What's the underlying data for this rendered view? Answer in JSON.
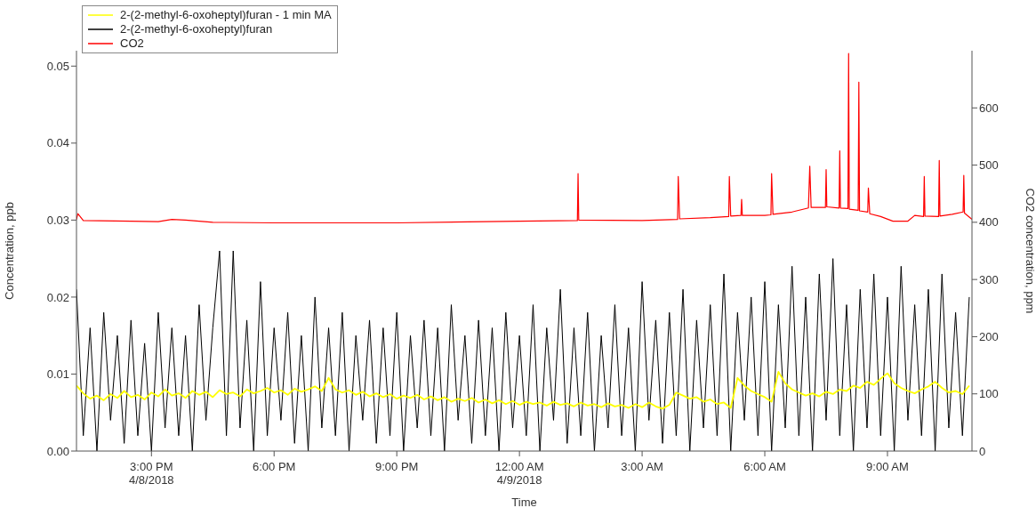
{
  "chart_data": {
    "type": "line",
    "xlabel": "Time",
    "ylabel": "Concentration, ppb",
    "y2label": "CO2 concentration, ppm",
    "legend": "top left",
    "x": [
      "2018-04-08T13:10",
      "2018-04-08T13:20",
      "2018-04-08T13:30",
      "2018-04-08T13:40",
      "2018-04-08T13:50",
      "2018-04-08T14:00",
      "2018-04-08T14:10",
      "2018-04-08T14:20",
      "2018-04-08T14:30",
      "2018-04-08T14:40",
      "2018-04-08T14:50",
      "2018-04-08T15:00",
      "2018-04-08T15:10",
      "2018-04-08T15:20",
      "2018-04-08T15:30",
      "2018-04-08T15:40",
      "2018-04-08T15:50",
      "2018-04-08T16:00",
      "2018-04-08T16:10",
      "2018-04-08T16:20",
      "2018-04-08T16:30",
      "2018-04-08T16:40",
      "2018-04-08T16:50",
      "2018-04-08T17:00",
      "2018-04-08T17:10",
      "2018-04-08T17:20",
      "2018-04-08T17:30",
      "2018-04-08T17:40",
      "2018-04-08T17:50",
      "2018-04-08T18:00",
      "2018-04-08T18:10",
      "2018-04-08T18:20",
      "2018-04-08T18:30",
      "2018-04-08T18:40",
      "2018-04-08T18:50",
      "2018-04-08T19:00",
      "2018-04-08T19:10",
      "2018-04-08T19:20",
      "2018-04-08T19:30",
      "2018-04-08T19:40",
      "2018-04-08T19:50",
      "2018-04-08T20:00",
      "2018-04-08T20:10",
      "2018-04-08T20:20",
      "2018-04-08T20:30",
      "2018-04-08T20:40",
      "2018-04-08T20:50",
      "2018-04-08T21:00",
      "2018-04-08T21:10",
      "2018-04-08T21:20",
      "2018-04-08T21:30",
      "2018-04-08T21:40",
      "2018-04-08T21:50",
      "2018-04-08T22:00",
      "2018-04-08T22:10",
      "2018-04-08T22:20",
      "2018-04-08T22:30",
      "2018-04-08T22:40",
      "2018-04-08T22:50",
      "2018-04-08T23:00",
      "2018-04-08T23:10",
      "2018-04-08T23:20",
      "2018-04-08T23:30",
      "2018-04-08T23:40",
      "2018-04-08T23:50",
      "2018-04-09T00:00",
      "2018-04-09T00:10",
      "2018-04-09T00:20",
      "2018-04-09T00:30",
      "2018-04-09T00:40",
      "2018-04-09T00:50",
      "2018-04-09T01:00",
      "2018-04-09T01:10",
      "2018-04-09T01:20",
      "2018-04-09T01:30",
      "2018-04-09T01:40",
      "2018-04-09T01:50",
      "2018-04-09T02:00",
      "2018-04-09T02:10",
      "2018-04-09T02:20",
      "2018-04-09T02:30",
      "2018-04-09T02:40",
      "2018-04-09T02:50",
      "2018-04-09T03:00",
      "2018-04-09T03:10",
      "2018-04-09T03:20",
      "2018-04-09T03:30",
      "2018-04-09T03:40",
      "2018-04-09T03:50",
      "2018-04-09T04:00",
      "2018-04-09T04:10",
      "2018-04-09T04:20",
      "2018-04-09T04:30",
      "2018-04-09T04:40",
      "2018-04-09T04:50",
      "2018-04-09T05:00",
      "2018-04-09T05:10",
      "2018-04-09T05:20",
      "2018-04-09T05:30",
      "2018-04-09T05:40",
      "2018-04-09T05:50",
      "2018-04-09T06:00",
      "2018-04-09T06:10",
      "2018-04-09T06:20",
      "2018-04-09T06:30",
      "2018-04-09T06:40",
      "2018-04-09T06:50",
      "2018-04-09T07:00",
      "2018-04-09T07:10",
      "2018-04-09T07:20",
      "2018-04-09T07:30",
      "2018-04-09T07:40",
      "2018-04-09T07:50",
      "2018-04-09T08:00",
      "2018-04-09T08:10",
      "2018-04-09T08:20",
      "2018-04-09T08:30",
      "2018-04-09T08:40",
      "2018-04-09T08:50",
      "2018-04-09T09:00",
      "2018-04-09T09:10",
      "2018-04-09T09:20",
      "2018-04-09T09:30",
      "2018-04-09T09:40",
      "2018-04-09T09:50",
      "2018-04-09T10:00",
      "2018-04-09T10:10",
      "2018-04-09T10:20",
      "2018-04-09T10:30",
      "2018-04-09T10:40",
      "2018-04-09T10:50",
      "2018-04-09T11:00"
    ],
    "xlim": [
      "2018-04-08T13:10",
      "2018-04-09T11:04"
    ],
    "xticks": [
      {
        "value": "2018-04-08T15:00",
        "label": "3:00 PM\n4/8/2018"
      },
      {
        "value": "2018-04-08T18:00",
        "label": "6:00 PM"
      },
      {
        "value": "2018-04-08T21:00",
        "label": "9:00 PM"
      },
      {
        "value": "2018-04-09T00:00",
        "label": "12:00 AM\n4/9/2018"
      },
      {
        "value": "2018-04-09T03:00",
        "label": "3:00 AM"
      },
      {
        "value": "2018-04-09T06:00",
        "label": "6:00 AM"
      },
      {
        "value": "2018-04-09T09:00",
        "label": "9:00 AM"
      }
    ],
    "ylim": [
      0,
      0.052
    ],
    "yticks": [
      {
        "value": 0,
        "label": "0.00"
      },
      {
        "value": 0.01,
        "label": "0.01"
      },
      {
        "value": 0.02,
        "label": "0.02"
      },
      {
        "value": 0.03,
        "label": "0.03"
      },
      {
        "value": 0.04,
        "label": "0.04"
      },
      {
        "value": 0.05,
        "label": "0.05"
      }
    ],
    "y2lim": [
      0,
      700
    ],
    "y2ticks": [
      0,
      100,
      200,
      300,
      400,
      500,
      600
    ],
    "series": [
      {
        "name": "2-(2-methyl-6-oxoheptyl)furan - 1 min MA",
        "color": "#ffff00",
        "values": [
          0.0085,
          0.0075,
          0.0068,
          0.0072,
          0.0066,
          0.0074,
          0.0069,
          0.0078,
          0.007,
          0.0073,
          0.0067,
          0.0076,
          0.0071,
          0.008,
          0.0072,
          0.0075,
          0.0069,
          0.0078,
          0.0073,
          0.0077,
          0.007,
          0.0079,
          0.0074,
          0.0076,
          0.0071,
          0.008,
          0.0075,
          0.0078,
          0.0082,
          0.0076,
          0.0079,
          0.0073,
          0.0081,
          0.0077,
          0.008,
          0.0084,
          0.0078,
          0.0095,
          0.008,
          0.0076,
          0.0079,
          0.0073,
          0.0077,
          0.0071,
          0.0075,
          0.007,
          0.0074,
          0.0068,
          0.0072,
          0.0069,
          0.0073,
          0.0067,
          0.0071,
          0.0066,
          0.007,
          0.0064,
          0.0068,
          0.0065,
          0.0069,
          0.0063,
          0.0067,
          0.0062,
          0.0066,
          0.0061,
          0.0065,
          0.006,
          0.0064,
          0.0061,
          0.0063,
          0.0059,
          0.0064,
          0.006,
          0.0062,
          0.0058,
          0.0063,
          0.0059,
          0.0061,
          0.0057,
          0.0062,
          0.0058,
          0.006,
          0.0056,
          0.0061,
          0.0057,
          0.0063,
          0.0058,
          0.0055,
          0.006,
          0.0076,
          0.0072,
          0.0068,
          0.007,
          0.0064,
          0.0067,
          0.0061,
          0.0063,
          0.0056,
          0.0095,
          0.0085,
          0.0078,
          0.0074,
          0.007,
          0.0064,
          0.0103,
          0.0088,
          0.008,
          0.0076,
          0.0072,
          0.0075,
          0.0071,
          0.0077,
          0.0074,
          0.008,
          0.0078,
          0.0085,
          0.0082,
          0.009,
          0.0086,
          0.0094,
          0.0101,
          0.0088,
          0.0082,
          0.0078,
          0.0075,
          0.008,
          0.0084,
          0.009,
          0.0082,
          0.0076,
          0.0078,
          0.0074,
          0.0085
        ]
      },
      {
        "name": "2-(2-methyl-6-oxoheptyl)furan",
        "color": "#000000",
        "values": [
          0.021,
          0.002,
          0.016,
          0.0,
          0.018,
          0.004,
          0.015,
          0.001,
          0.017,
          0.002,
          0.014,
          0.0,
          0.018,
          0.003,
          0.016,
          0.002,
          0.015,
          0.0,
          0.019,
          0.004,
          0.016,
          0.026,
          0.002,
          0.026,
          0.003,
          0.017,
          0.0,
          0.022,
          0.002,
          0.016,
          0.004,
          0.018,
          0.001,
          0.015,
          0.0,
          0.02,
          0.003,
          0.016,
          0.002,
          0.018,
          0.0,
          0.015,
          0.004,
          0.017,
          0.001,
          0.016,
          0.002,
          0.018,
          0.0,
          0.015,
          0.003,
          0.017,
          0.002,
          0.016,
          0.0,
          0.019,
          0.004,
          0.015,
          0.001,
          0.017,
          0.002,
          0.016,
          0.0,
          0.018,
          0.003,
          0.015,
          0.002,
          0.019,
          0.0,
          0.016,
          0.004,
          0.021,
          0.001,
          0.016,
          0.002,
          0.018,
          0.0,
          0.015,
          0.003,
          0.019,
          0.002,
          0.016,
          0.0,
          0.022,
          0.004,
          0.017,
          0.001,
          0.018,
          0.002,
          0.021,
          0.0,
          0.017,
          0.003,
          0.019,
          0.002,
          0.023,
          0.0,
          0.018,
          0.004,
          0.02,
          0.002,
          0.022,
          0.0,
          0.019,
          0.003,
          0.024,
          0.002,
          0.02,
          0.0,
          0.023,
          0.004,
          0.025,
          0.002,
          0.019,
          0.0,
          0.021,
          0.003,
          0.023,
          0.002,
          0.02,
          0.0,
          0.024,
          0.004,
          0.019,
          0.002,
          0.021,
          0.0,
          0.023,
          0.003,
          0.018,
          0.002,
          0.02
        ]
      },
      {
        "name": "CO2",
        "color": "#ff0000",
        "axis": "y2",
        "x": [
          "2018-04-08T13:10",
          "2018-04-08T13:12",
          "2018-04-08T13:20",
          "2018-04-08T14:30",
          "2018-04-08T15:10",
          "2018-04-08T15:30",
          "2018-04-08T15:50",
          "2018-04-08T16:30",
          "2018-04-08T18:00",
          "2018-04-08T21:00",
          "2018-04-09T00:00",
          "2018-04-09T01:25",
          "2018-04-09T01:26",
          "2018-04-09T01:27",
          "2018-04-09T03:00",
          "2018-04-09T03:52",
          "2018-04-09T03:53",
          "2018-04-09T03:55",
          "2018-04-09T04:40",
          "2018-04-09T05:07",
          "2018-04-09T05:08",
          "2018-04-09T05:10",
          "2018-04-09T05:25",
          "2018-04-09T05:26",
          "2018-04-09T05:27",
          "2018-04-09T06:00",
          "2018-04-09T06:09",
          "2018-04-09T06:10",
          "2018-04-09T06:12",
          "2018-04-09T06:40",
          "2018-04-09T07:04",
          "2018-04-09T07:06",
          "2018-04-09T07:08",
          "2018-04-09T07:29",
          "2018-04-09T07:30",
          "2018-04-09T07:31",
          "2018-04-09T07:49",
          "2018-04-09T07:50",
          "2018-04-09T07:51",
          "2018-04-09T08:02",
          "2018-04-09T08:03",
          "2018-04-09T08:04",
          "2018-04-09T08:17",
          "2018-04-09T08:18",
          "2018-04-09T08:19",
          "2018-04-09T08:31",
          "2018-04-09T08:32",
          "2018-04-09T08:34",
          "2018-04-09T08:50",
          "2018-04-09T09:08",
          "2018-04-09T09:30",
          "2018-04-09T09:40",
          "2018-04-09T09:53",
          "2018-04-09T09:54",
          "2018-04-09T09:55",
          "2018-04-09T10:15",
          "2018-04-09T10:16",
          "2018-04-09T10:17",
          "2018-04-09T10:35",
          "2018-04-09T10:51",
          "2018-04-09T10:52",
          "2018-04-09T10:53",
          "2018-04-09T11:04"
        ],
        "values": [
          405,
          415,
          403,
          402,
          401,
          405,
          404,
          400,
          399,
          399,
          402,
          403,
          485,
          404,
          403,
          405,
          480,
          406,
          408,
          410,
          480,
          411,
          412,
          440,
          412,
          412,
          413,
          485,
          414,
          418,
          425,
          498,
          426,
          426,
          492,
          427,
          425,
          525,
          425,
          424,
          695,
          423,
          421,
          645,
          420,
          418,
          460,
          415,
          410,
          402,
          402,
          412,
          410,
          480,
          411,
          410,
          508,
          411,
          414,
          418,
          482,
          416,
          405
        ]
      }
    ]
  }
}
